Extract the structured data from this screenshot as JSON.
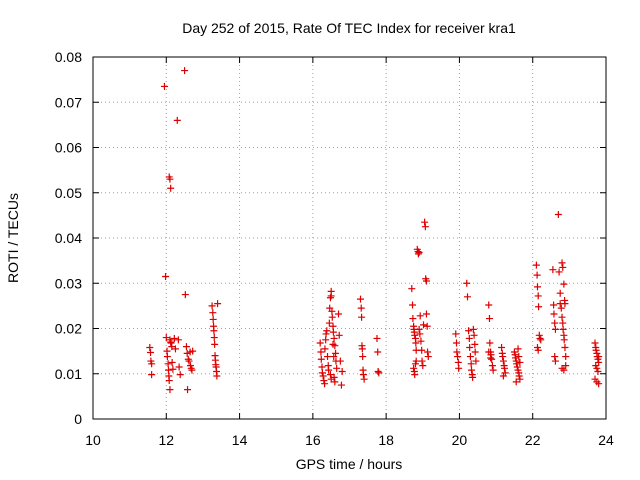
{
  "chart_data": {
    "type": "scatter",
    "title": "Day 252 of 2015, Rate Of TEC Index for receiver kra1",
    "xlabel": "GPS time / hours",
    "ylabel": "ROTI / TECUs",
    "xlim": [
      10,
      24
    ],
    "ylim": [
      0,
      0.08
    ],
    "x_ticks": [
      "10",
      "12",
      "14",
      "16",
      "18",
      "20",
      "22",
      "24"
    ],
    "y_ticks": [
      "0",
      "0.01",
      "0.02",
      "0.03",
      "0.04",
      "0.05",
      "0.06",
      "0.07",
      "0.08"
    ],
    "grid": true,
    "marker": "plus",
    "point_color": "#dd0000",
    "points": [
      [
        11.55,
        0.0158
      ],
      [
        11.57,
        0.0147
      ],
      [
        11.58,
        0.0128
      ],
      [
        11.6,
        0.0122
      ],
      [
        11.6,
        0.0098
      ],
      [
        11.95,
        0.0735
      ],
      [
        11.98,
        0.0315
      ],
      [
        12.0,
        0.018
      ],
      [
        12.02,
        0.015
      ],
      [
        12.03,
        0.0138
      ],
      [
        12.05,
        0.0122
      ],
      [
        12.06,
        0.0108
      ],
      [
        12.07,
        0.0095
      ],
      [
        12.08,
        0.0085
      ],
      [
        12.1,
        0.0065
      ],
      [
        12.08,
        0.0535
      ],
      [
        12.1,
        0.053
      ],
      [
        12.12,
        0.051
      ],
      [
        12.1,
        0.0175
      ],
      [
        12.12,
        0.017
      ],
      [
        12.13,
        0.0168
      ],
      [
        12.15,
        0.016
      ],
      [
        12.16,
        0.0125
      ],
      [
        12.18,
        0.011
      ],
      [
        12.22,
        0.0178
      ],
      [
        12.25,
        0.0155
      ],
      [
        12.3,
        0.066
      ],
      [
        12.33,
        0.0175
      ],
      [
        12.35,
        0.0115
      ],
      [
        12.38,
        0.0098
      ],
      [
        12.5,
        0.077
      ],
      [
        12.52,
        0.0275
      ],
      [
        12.55,
        0.016
      ],
      [
        12.57,
        0.0145
      ],
      [
        12.58,
        0.0065
      ],
      [
        12.6,
        0.0132
      ],
      [
        12.62,
        0.0128
      ],
      [
        12.65,
        0.0148
      ],
      [
        12.66,
        0.0118
      ],
      [
        12.68,
        0.0112
      ],
      [
        12.7,
        0.0108
      ],
      [
        12.72,
        0.015
      ],
      [
        13.25,
        0.025
      ],
      [
        13.27,
        0.0235
      ],
      [
        13.28,
        0.022
      ],
      [
        13.29,
        0.0205
      ],
      [
        13.3,
        0.0195
      ],
      [
        13.31,
        0.018
      ],
      [
        13.32,
        0.0165
      ],
      [
        13.33,
        0.014
      ],
      [
        13.34,
        0.013
      ],
      [
        13.35,
        0.012
      ],
      [
        13.36,
        0.0115
      ],
      [
        13.37,
        0.0105
      ],
      [
        13.38,
        0.0095
      ],
      [
        13.4,
        0.0255
      ],
      [
        16.2,
        0.0168
      ],
      [
        16.22,
        0.0148
      ],
      [
        16.23,
        0.0132
      ],
      [
        16.25,
        0.0115
      ],
      [
        16.26,
        0.0102
      ],
      [
        16.28,
        0.0095
      ],
      [
        16.3,
        0.0085
      ],
      [
        16.32,
        0.0078
      ],
      [
        16.33,
        0.0155
      ],
      [
        16.35,
        0.0175
      ],
      [
        16.36,
        0.0188
      ],
      [
        16.38,
        0.0195
      ],
      [
        16.4,
        0.0138
      ],
      [
        16.42,
        0.0118
      ],
      [
        16.43,
        0.0108
      ],
      [
        16.45,
        0.0212
      ],
      [
        16.46,
        0.0245
      ],
      [
        16.48,
        0.0268
      ],
      [
        16.5,
        0.0282
      ],
      [
        16.5,
        0.0272
      ],
      [
        16.52,
        0.0238
      ],
      [
        16.53,
        0.0225
      ],
      [
        16.55,
        0.0205
      ],
      [
        16.56,
        0.0192
      ],
      [
        16.58,
        0.0178
      ],
      [
        16.6,
        0.0162
      ],
      [
        16.62,
        0.0145
      ],
      [
        16.63,
        0.0128
      ],
      [
        16.65,
        0.0112
      ],
      [
        16.48,
        0.0098
      ],
      [
        16.5,
        0.0088
      ],
      [
        16.55,
        0.0165
      ],
      [
        16.57,
        0.0138
      ],
      [
        16.58,
        0.0092
      ],
      [
        16.6,
        0.0082
      ],
      [
        16.7,
        0.0232
      ],
      [
        16.72,
        0.0185
      ],
      [
        16.75,
        0.0128
      ],
      [
        16.78,
        0.0075
      ],
      [
        16.8,
        0.0105
      ],
      [
        17.3,
        0.0265
      ],
      [
        17.32,
        0.0245
      ],
      [
        17.33,
        0.0225
      ],
      [
        17.34,
        0.0162
      ],
      [
        17.35,
        0.0155
      ],
      [
        17.36,
        0.0138
      ],
      [
        17.37,
        0.0108
      ],
      [
        17.38,
        0.0098
      ],
      [
        17.4,
        0.0088
      ],
      [
        17.75,
        0.0178
      ],
      [
        17.77,
        0.0148
      ],
      [
        17.78,
        0.0105
      ],
      [
        17.8,
        0.0102
      ],
      [
        18.7,
        0.0288
      ],
      [
        18.72,
        0.0252
      ],
      [
        18.73,
        0.0222
      ],
      [
        18.75,
        0.0205
      ],
      [
        18.76,
        0.0198
      ],
      [
        18.77,
        0.0192
      ],
      [
        18.78,
        0.0185
      ],
      [
        18.8,
        0.0178
      ],
      [
        18.81,
        0.0168
      ],
      [
        18.82,
        0.0152
      ],
      [
        18.75,
        0.0112
      ],
      [
        18.77,
        0.0105
      ],
      [
        18.78,
        0.0098
      ],
      [
        18.8,
        0.0122
      ],
      [
        18.82,
        0.0128
      ],
      [
        18.85,
        0.0375
      ],
      [
        18.87,
        0.037
      ],
      [
        18.88,
        0.0365
      ],
      [
        18.9,
        0.0368
      ],
      [
        18.9,
        0.0198
      ],
      [
        18.92,
        0.0188
      ],
      [
        18.93,
        0.0228
      ],
      [
        18.95,
        0.0172
      ],
      [
        18.97,
        0.0152
      ],
      [
        18.98,
        0.0128
      ],
      [
        19.0,
        0.0118
      ],
      [
        19.02,
        0.0208
      ],
      [
        19.05,
        0.0435
      ],
      [
        19.07,
        0.0425
      ],
      [
        19.08,
        0.031
      ],
      [
        19.1,
        0.0305
      ],
      [
        19.1,
        0.0232
      ],
      [
        19.12,
        0.0205
      ],
      [
        19.13,
        0.0148
      ],
      [
        19.15,
        0.0138
      ],
      [
        19.9,
        0.0188
      ],
      [
        19.92,
        0.0168
      ],
      [
        19.93,
        0.0148
      ],
      [
        19.95,
        0.0138
      ],
      [
        19.97,
        0.0125
      ],
      [
        19.98,
        0.0112
      ],
      [
        20.2,
        0.03
      ],
      [
        20.22,
        0.027
      ],
      [
        20.25,
        0.0195
      ],
      [
        20.27,
        0.0178
      ],
      [
        20.28,
        0.0158
      ],
      [
        20.3,
        0.0138
      ],
      [
        20.32,
        0.0122
      ],
      [
        20.33,
        0.0108
      ],
      [
        20.35,
        0.0098
      ],
      [
        20.36,
        0.0092
      ],
      [
        20.38,
        0.0198
      ],
      [
        20.4,
        0.0185
      ],
      [
        20.42,
        0.0165
      ],
      [
        20.43,
        0.0148
      ],
      [
        20.45,
        0.0128
      ],
      [
        20.8,
        0.0252
      ],
      [
        20.82,
        0.0222
      ],
      [
        20.83,
        0.0168
      ],
      [
        20.85,
        0.0148
      ],
      [
        20.86,
        0.0142
      ],
      [
        20.88,
        0.0132
      ],
      [
        20.9,
        0.0118
      ],
      [
        20.92,
        0.0108
      ],
      [
        20.8,
        0.0148
      ],
      [
        20.85,
        0.0135
      ],
      [
        21.15,
        0.0158
      ],
      [
        21.17,
        0.0145
      ],
      [
        21.18,
        0.0138
      ],
      [
        21.2,
        0.0128
      ],
      [
        21.22,
        0.0118
      ],
      [
        21.23,
        0.0112
      ],
      [
        21.25,
        0.0102
      ],
      [
        21.2,
        0.0095
      ],
      [
        21.5,
        0.0148
      ],
      [
        21.52,
        0.0142
      ],
      [
        21.53,
        0.0135
      ],
      [
        21.55,
        0.0128
      ],
      [
        21.56,
        0.0122
      ],
      [
        21.58,
        0.0115
      ],
      [
        21.6,
        0.0108
      ],
      [
        21.62,
        0.0102
      ],
      [
        21.63,
        0.0095
      ],
      [
        21.65,
        0.0088
      ],
      [
        21.55,
        0.0082
      ],
      [
        21.6,
        0.0155
      ],
      [
        21.62,
        0.0138
      ],
      [
        21.65,
        0.0125
      ],
      [
        22.1,
        0.034
      ],
      [
        22.12,
        0.0318
      ],
      [
        22.13,
        0.0292
      ],
      [
        22.15,
        0.0272
      ],
      [
        22.16,
        0.0248
      ],
      [
        22.18,
        0.0185
      ],
      [
        22.2,
        0.0178
      ],
      [
        22.22,
        0.0175
      ],
      [
        22.13,
        0.0158
      ],
      [
        22.15,
        0.0152
      ],
      [
        22.55,
        0.033
      ],
      [
        22.57,
        0.0252
      ],
      [
        22.58,
        0.0232
      ],
      [
        22.6,
        0.0212
      ],
      [
        22.62,
        0.0198
      ],
      [
        22.6,
        0.0138
      ],
      [
        22.62,
        0.0128
      ],
      [
        22.7,
        0.0452
      ],
      [
        22.72,
        0.0325
      ],
      [
        22.75,
        0.0278
      ],
      [
        22.75,
        0.0255
      ],
      [
        22.78,
        0.0245
      ],
      [
        22.8,
        0.0225
      ],
      [
        22.82,
        0.0212
      ],
      [
        22.83,
        0.0198
      ],
      [
        22.85,
        0.0185
      ],
      [
        22.86,
        0.0175
      ],
      [
        22.88,
        0.0158
      ],
      [
        22.9,
        0.0138
      ],
      [
        22.8,
        0.0345
      ],
      [
        22.82,
        0.0335
      ],
      [
        22.85,
        0.0298
      ],
      [
        22.87,
        0.0262
      ],
      [
        22.88,
        0.0255
      ],
      [
        22.8,
        0.0112
      ],
      [
        22.85,
        0.0108
      ],
      [
        22.9,
        0.0118
      ],
      [
        23.7,
        0.0168
      ],
      [
        23.72,
        0.0158
      ],
      [
        23.73,
        0.0152
      ],
      [
        23.75,
        0.0145
      ],
      [
        23.76,
        0.0138
      ],
      [
        23.78,
        0.0132
      ],
      [
        23.8,
        0.0125
      ],
      [
        23.72,
        0.0118
      ],
      [
        23.75,
        0.0112
      ],
      [
        23.78,
        0.0105
      ],
      [
        23.7,
        0.0088
      ],
      [
        23.75,
        0.0082
      ],
      [
        23.8,
        0.0078
      ],
      [
        23.8,
        0.0138
      ]
    ]
  }
}
